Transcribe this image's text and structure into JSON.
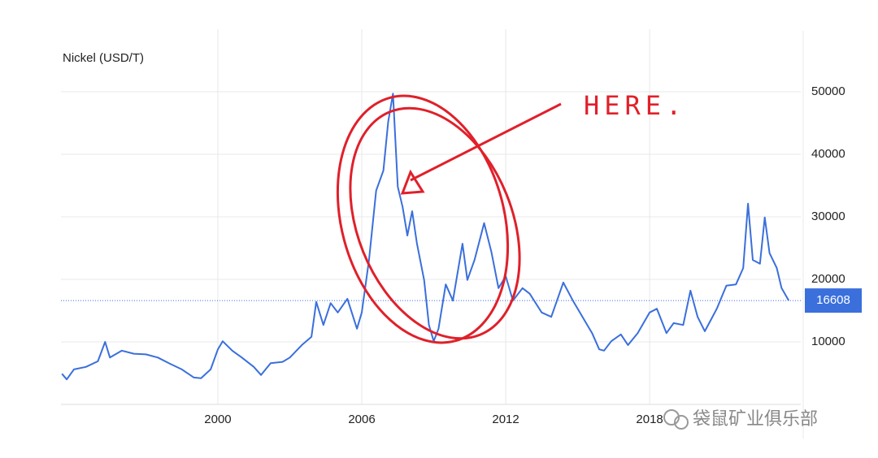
{
  "chart_data": {
    "type": "line",
    "title": "Nickel (USD/T)",
    "color": "#3a6fdc",
    "x": [
      1993.5,
      1993.7,
      1994.0,
      1994.5,
      1995.0,
      1995.3,
      1995.5,
      1996.0,
      1996.5,
      1997.0,
      1997.5,
      1998.0,
      1998.5,
      1999.0,
      1999.3,
      1999.7,
      2000.0,
      2000.2,
      2000.6,
      2001.0,
      2001.5,
      2001.8,
      2002.2,
      2002.7,
      2003.0,
      2003.5,
      2003.9,
      2004.1,
      2004.4,
      2004.7,
      2005.0,
      2005.4,
      2005.8,
      2006.0,
      2006.3,
      2006.6,
      2006.9,
      2007.1,
      2007.3,
      2007.5,
      2007.7,
      2007.9,
      2008.1,
      2008.3,
      2008.6,
      2008.8,
      2009.0,
      2009.2,
      2009.5,
      2009.8,
      2010.2,
      2010.4,
      2010.7,
      2011.1,
      2011.4,
      2011.7,
      2012.0,
      2012.3,
      2012.7,
      2013.0,
      2013.5,
      2013.9,
      2014.4,
      2014.8,
      2015.2,
      2015.6,
      2015.9,
      2016.1,
      2016.4,
      2016.8,
      2017.1,
      2017.5,
      2018.0,
      2018.3,
      2018.7,
      2019.0,
      2019.4,
      2019.7,
      2020.0,
      2020.3,
      2020.8,
      2021.2,
      2021.6,
      2021.9,
      2022.1,
      2022.3,
      2022.6,
      2022.8,
      2023.0,
      2023.3,
      2023.5,
      2023.8
    ],
    "values": [
      4900,
      4000,
      5600,
      6000,
      6900,
      10000,
      7500,
      8600,
      8100,
      8000,
      7500,
      6500,
      5600,
      4300,
      4200,
      5600,
      8800,
      10100,
      8600,
      7500,
      6000,
      4700,
      6600,
      6800,
      7500,
      9500,
      10800,
      16400,
      12700,
      16200,
      14700,
      16900,
      12100,
      14700,
      23100,
      34200,
      37400,
      45200,
      49700,
      34800,
      31600,
      27000,
      30900,
      25700,
      19900,
      12700,
      10100,
      12100,
      19200,
      16600,
      25700,
      19900,
      23100,
      29000,
      24400,
      18600,
      20500,
      16600,
      18600,
      17700,
      14700,
      14000,
      19500,
      16600,
      14000,
      11400,
      8800,
      8600,
      10100,
      11200,
      9500,
      11400,
      14700,
      15300,
      11400,
      13000,
      12700,
      18200,
      14000,
      11700,
      15300,
      19000,
      19200,
      21800,
      32100,
      23100,
      22500,
      29900,
      24200,
      21800,
      18600,
      16608
    ],
    "xlim": [
      1993.46,
      2024.3
    ],
    "xticks": [
      2000,
      2006,
      2012,
      2018
    ],
    "ylim": [
      0,
      60000
    ],
    "yticks": [
      10000,
      20000,
      30000,
      40000,
      50000
    ],
    "grid": true,
    "last_value": 16608,
    "annotation": "HERE.",
    "watermark": "袋鼠矿业俱乐部"
  }
}
